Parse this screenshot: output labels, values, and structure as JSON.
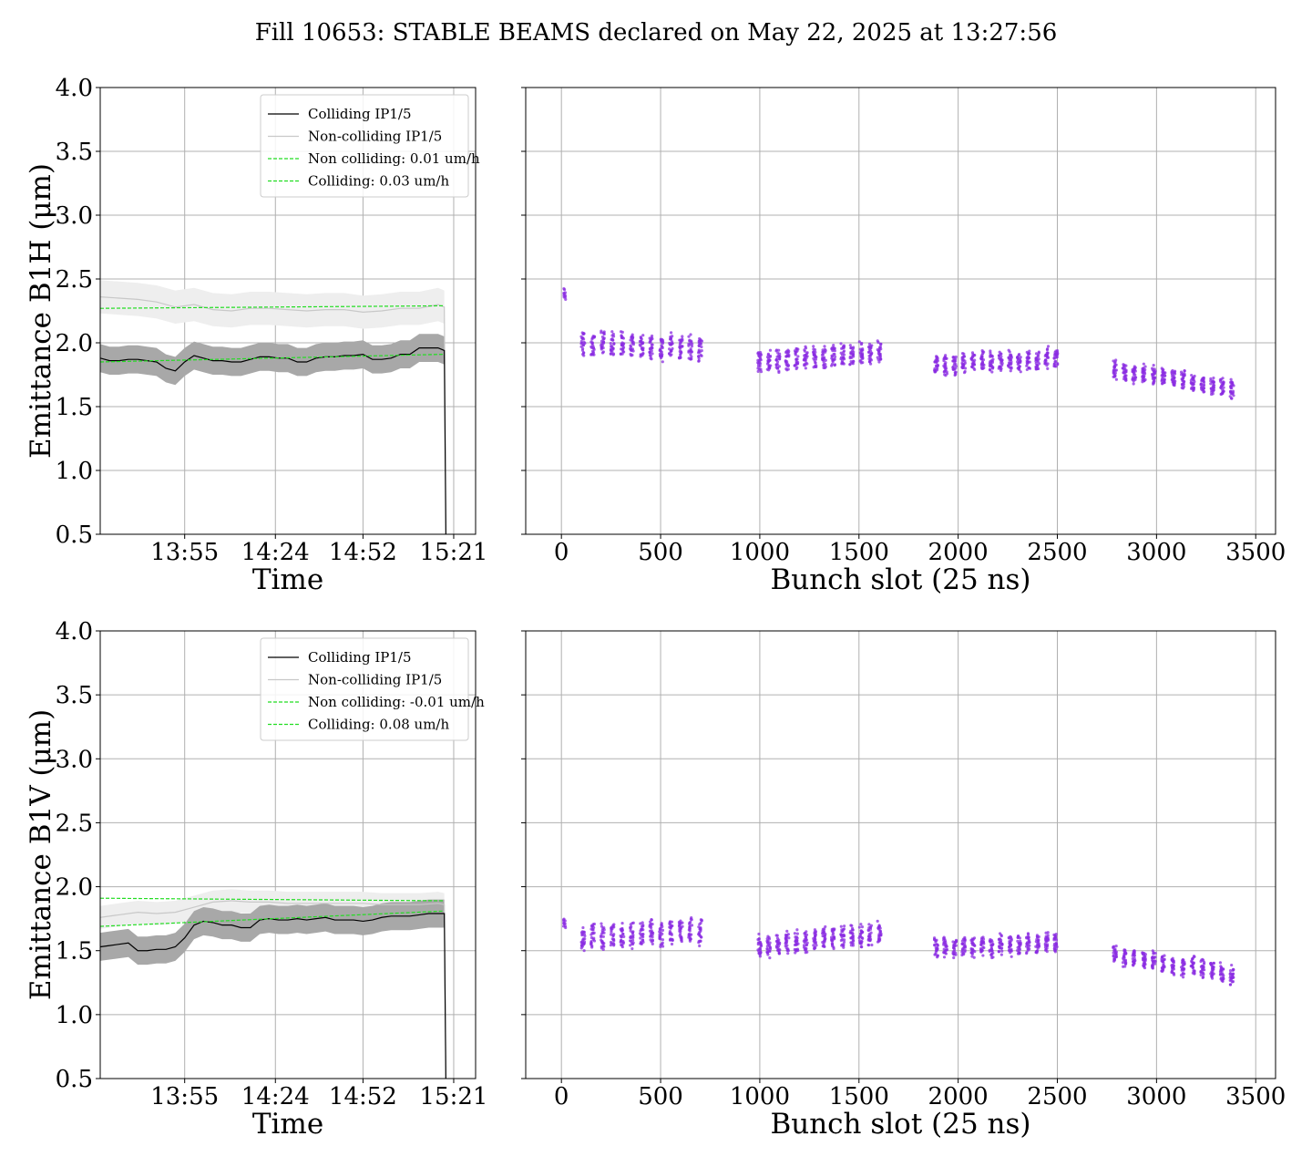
{
  "figure": {
    "title": "Fill 10653: STABLE BEAMS declared on May 22, 2025 at 13:27:56"
  },
  "colors": {
    "colliding": "#000000",
    "colliding_band": "#a8a8a8",
    "noncolliding": "#c8c8c8",
    "noncolliding_band": "#eeeeee",
    "fit": "#22dd22",
    "scatter": "#8a2be2",
    "grid": "#b0b0b0"
  },
  "chart_data": [
    {
      "id": "time-h",
      "type": "line",
      "ylabel": "Emittance B1H (μm)",
      "xlabel": "Time",
      "ylim": [
        0.5,
        4.0
      ],
      "yticks": [
        "0.5",
        "1.0",
        "1.5",
        "2.0",
        "2.5",
        "3.0",
        "3.5",
        "4.0"
      ],
      "xlim": [
        0,
        120
      ],
      "xticks": [
        {
          "value": 27,
          "label": "13:55"
        },
        {
          "value": 56,
          "label": "14:24"
        },
        {
          "value": 84,
          "label": "14:52"
        },
        {
          "value": 113,
          "label": "15:21"
        }
      ],
      "grid": true,
      "legend": {
        "position": "top-right",
        "entries": [
          {
            "label": "Colliding IP1/5",
            "series": "colliding",
            "style": "solid"
          },
          {
            "label": "Non-colliding IP1/5",
            "series": "noncolliding",
            "style": "solid"
          },
          {
            "label": "Non colliding: 0.01 um/h",
            "series": "fit",
            "style": "dashed"
          },
          {
            "label": "Colliding: 0.03 um/h",
            "series": "fit",
            "style": "dashed"
          }
        ]
      },
      "series": [
        {
          "name": "Colliding IP1/5",
          "x": [
            0,
            3,
            6,
            9,
            12,
            15,
            18,
            21,
            24,
            27,
            30,
            33,
            36,
            39,
            42,
            45,
            48,
            51,
            54,
            57,
            60,
            63,
            66,
            69,
            72,
            75,
            78,
            81,
            84,
            87,
            90,
            93,
            96,
            99,
            102,
            105,
            108,
            110
          ],
          "y": [
            1.88,
            1.86,
            1.86,
            1.87,
            1.87,
            1.86,
            1.85,
            1.8,
            1.78,
            1.85,
            1.9,
            1.88,
            1.86,
            1.86,
            1.85,
            1.85,
            1.87,
            1.89,
            1.89,
            1.88,
            1.88,
            1.85,
            1.85,
            1.88,
            1.89,
            1.89,
            1.9,
            1.9,
            1.91,
            1.87,
            1.87,
            1.88,
            1.91,
            1.91,
            1.96,
            1.96,
            1.96,
            1.94
          ],
          "band": 0.11
        },
        {
          "name": "Non-colliding IP1/5",
          "x": [
            0,
            6,
            12,
            18,
            24,
            30,
            36,
            42,
            48,
            54,
            60,
            66,
            72,
            78,
            84,
            90,
            96,
            102,
            108,
            110
          ],
          "y": [
            2.36,
            2.35,
            2.34,
            2.32,
            2.28,
            2.3,
            2.26,
            2.25,
            2.27,
            2.27,
            2.26,
            2.25,
            2.26,
            2.26,
            2.24,
            2.25,
            2.27,
            2.27,
            2.3,
            2.28
          ],
          "band": 0.13
        }
      ],
      "fits": [
        {
          "name": "Non colliding: 0.01 um/h",
          "x": [
            0,
            110
          ],
          "y": [
            2.27,
            2.29
          ]
        },
        {
          "name": "Colliding: 0.03 um/h",
          "x": [
            0,
            110
          ],
          "y": [
            1.85,
            1.91
          ]
        }
      ]
    },
    {
      "id": "bunch-h",
      "type": "scatter",
      "xlabel": "Bunch slot (25 ns)",
      "ylim": [
        0.5,
        4.0
      ],
      "xlim": [
        -180,
        3600
      ],
      "xticks": [
        0,
        500,
        1000,
        1500,
        2000,
        2500,
        3000,
        3500
      ],
      "grid": true,
      "trains": [
        {
          "start": 10,
          "end": 30,
          "y0": 2.38,
          "y1": 2.45,
          "spread": 0.06
        },
        {
          "start": 100,
          "end": 740,
          "y0": 2.0,
          "y1": 1.96,
          "spread": 0.12
        },
        {
          "start": 990,
          "end": 1640,
          "y0": 1.86,
          "y1": 1.92,
          "spread": 0.11
        },
        {
          "start": 1880,
          "end": 2530,
          "y0": 1.83,
          "y1": 1.88,
          "spread": 0.1
        },
        {
          "start": 2780,
          "end": 3420,
          "y0": 1.8,
          "y1": 1.64,
          "spread": 0.09
        }
      ]
    },
    {
      "id": "time-v",
      "type": "line",
      "ylabel": "Emittance B1V (μm)",
      "xlabel": "Time",
      "ylim": [
        0.5,
        4.0
      ],
      "yticks": [
        "0.5",
        "1.0",
        "1.5",
        "2.0",
        "2.5",
        "3.0",
        "3.5",
        "4.0"
      ],
      "xlim": [
        0,
        120
      ],
      "xticks": [
        {
          "value": 27,
          "label": "13:55"
        },
        {
          "value": 56,
          "label": "14:24"
        },
        {
          "value": 84,
          "label": "14:52"
        },
        {
          "value": 113,
          "label": "15:21"
        }
      ],
      "grid": true,
      "legend": {
        "position": "top-right",
        "entries": [
          {
            "label": "Colliding IP1/5",
            "series": "colliding",
            "style": "solid"
          },
          {
            "label": "Non-colliding IP1/5",
            "series": "noncolliding",
            "style": "solid"
          },
          {
            "label": "Non colliding: -0.01 um/h",
            "series": "fit",
            "style": "dashed"
          },
          {
            "label": "Colliding: 0.08 um/h",
            "series": "fit",
            "style": "dashed"
          }
        ]
      },
      "series": [
        {
          "name": "Colliding IP1/5",
          "x": [
            0,
            3,
            6,
            9,
            12,
            15,
            18,
            21,
            24,
            27,
            30,
            33,
            36,
            39,
            42,
            45,
            48,
            51,
            54,
            57,
            60,
            63,
            66,
            69,
            72,
            75,
            78,
            81,
            84,
            87,
            90,
            93,
            96,
            99,
            102,
            105,
            108,
            110
          ],
          "y": [
            1.53,
            1.54,
            1.55,
            1.56,
            1.5,
            1.5,
            1.51,
            1.51,
            1.53,
            1.6,
            1.7,
            1.73,
            1.72,
            1.7,
            1.7,
            1.68,
            1.68,
            1.74,
            1.75,
            1.74,
            1.74,
            1.75,
            1.74,
            1.75,
            1.76,
            1.74,
            1.74,
            1.74,
            1.73,
            1.74,
            1.76,
            1.77,
            1.77,
            1.77,
            1.78,
            1.79,
            1.79,
            1.79
          ],
          "band": 0.11
        },
        {
          "name": "Non-colliding IP1/5",
          "x": [
            0,
            6,
            12,
            18,
            24,
            30,
            36,
            42,
            48,
            54,
            60,
            66,
            72,
            78,
            84,
            90,
            96,
            102,
            108,
            110
          ],
          "y": [
            1.76,
            1.78,
            1.8,
            1.79,
            1.8,
            1.84,
            1.88,
            1.89,
            1.88,
            1.88,
            1.87,
            1.87,
            1.87,
            1.87,
            1.87,
            1.86,
            1.86,
            1.86,
            1.87,
            1.86
          ],
          "band": 0.09
        }
      ],
      "fits": [
        {
          "name": "Non colliding: -0.01 um/h",
          "x": [
            0,
            110
          ],
          "y": [
            1.91,
            1.89
          ]
        },
        {
          "name": "Colliding: 0.08 um/h",
          "x": [
            0,
            110
          ],
          "y": [
            1.69,
            1.81
          ]
        }
      ]
    },
    {
      "id": "bunch-v",
      "type": "scatter",
      "xlabel": "Bunch slot (25 ns)",
      "ylim": [
        0.5,
        4.0
      ],
      "xlim": [
        -180,
        3600
      ],
      "xticks": [
        0,
        500,
        1000,
        1500,
        2000,
        2500,
        3000,
        3500
      ],
      "grid": true,
      "trains": [
        {
          "start": 10,
          "end": 30,
          "y0": 1.72,
          "y1": 1.78,
          "spread": 0.05
        },
        {
          "start": 100,
          "end": 740,
          "y0": 1.6,
          "y1": 1.66,
          "spread": 0.13
        },
        {
          "start": 990,
          "end": 1640,
          "y0": 1.54,
          "y1": 1.64,
          "spread": 0.11
        },
        {
          "start": 1880,
          "end": 2530,
          "y0": 1.52,
          "y1": 1.57,
          "spread": 0.1
        },
        {
          "start": 2780,
          "end": 3420,
          "y0": 1.47,
          "y1": 1.32,
          "spread": 0.09
        }
      ]
    }
  ]
}
